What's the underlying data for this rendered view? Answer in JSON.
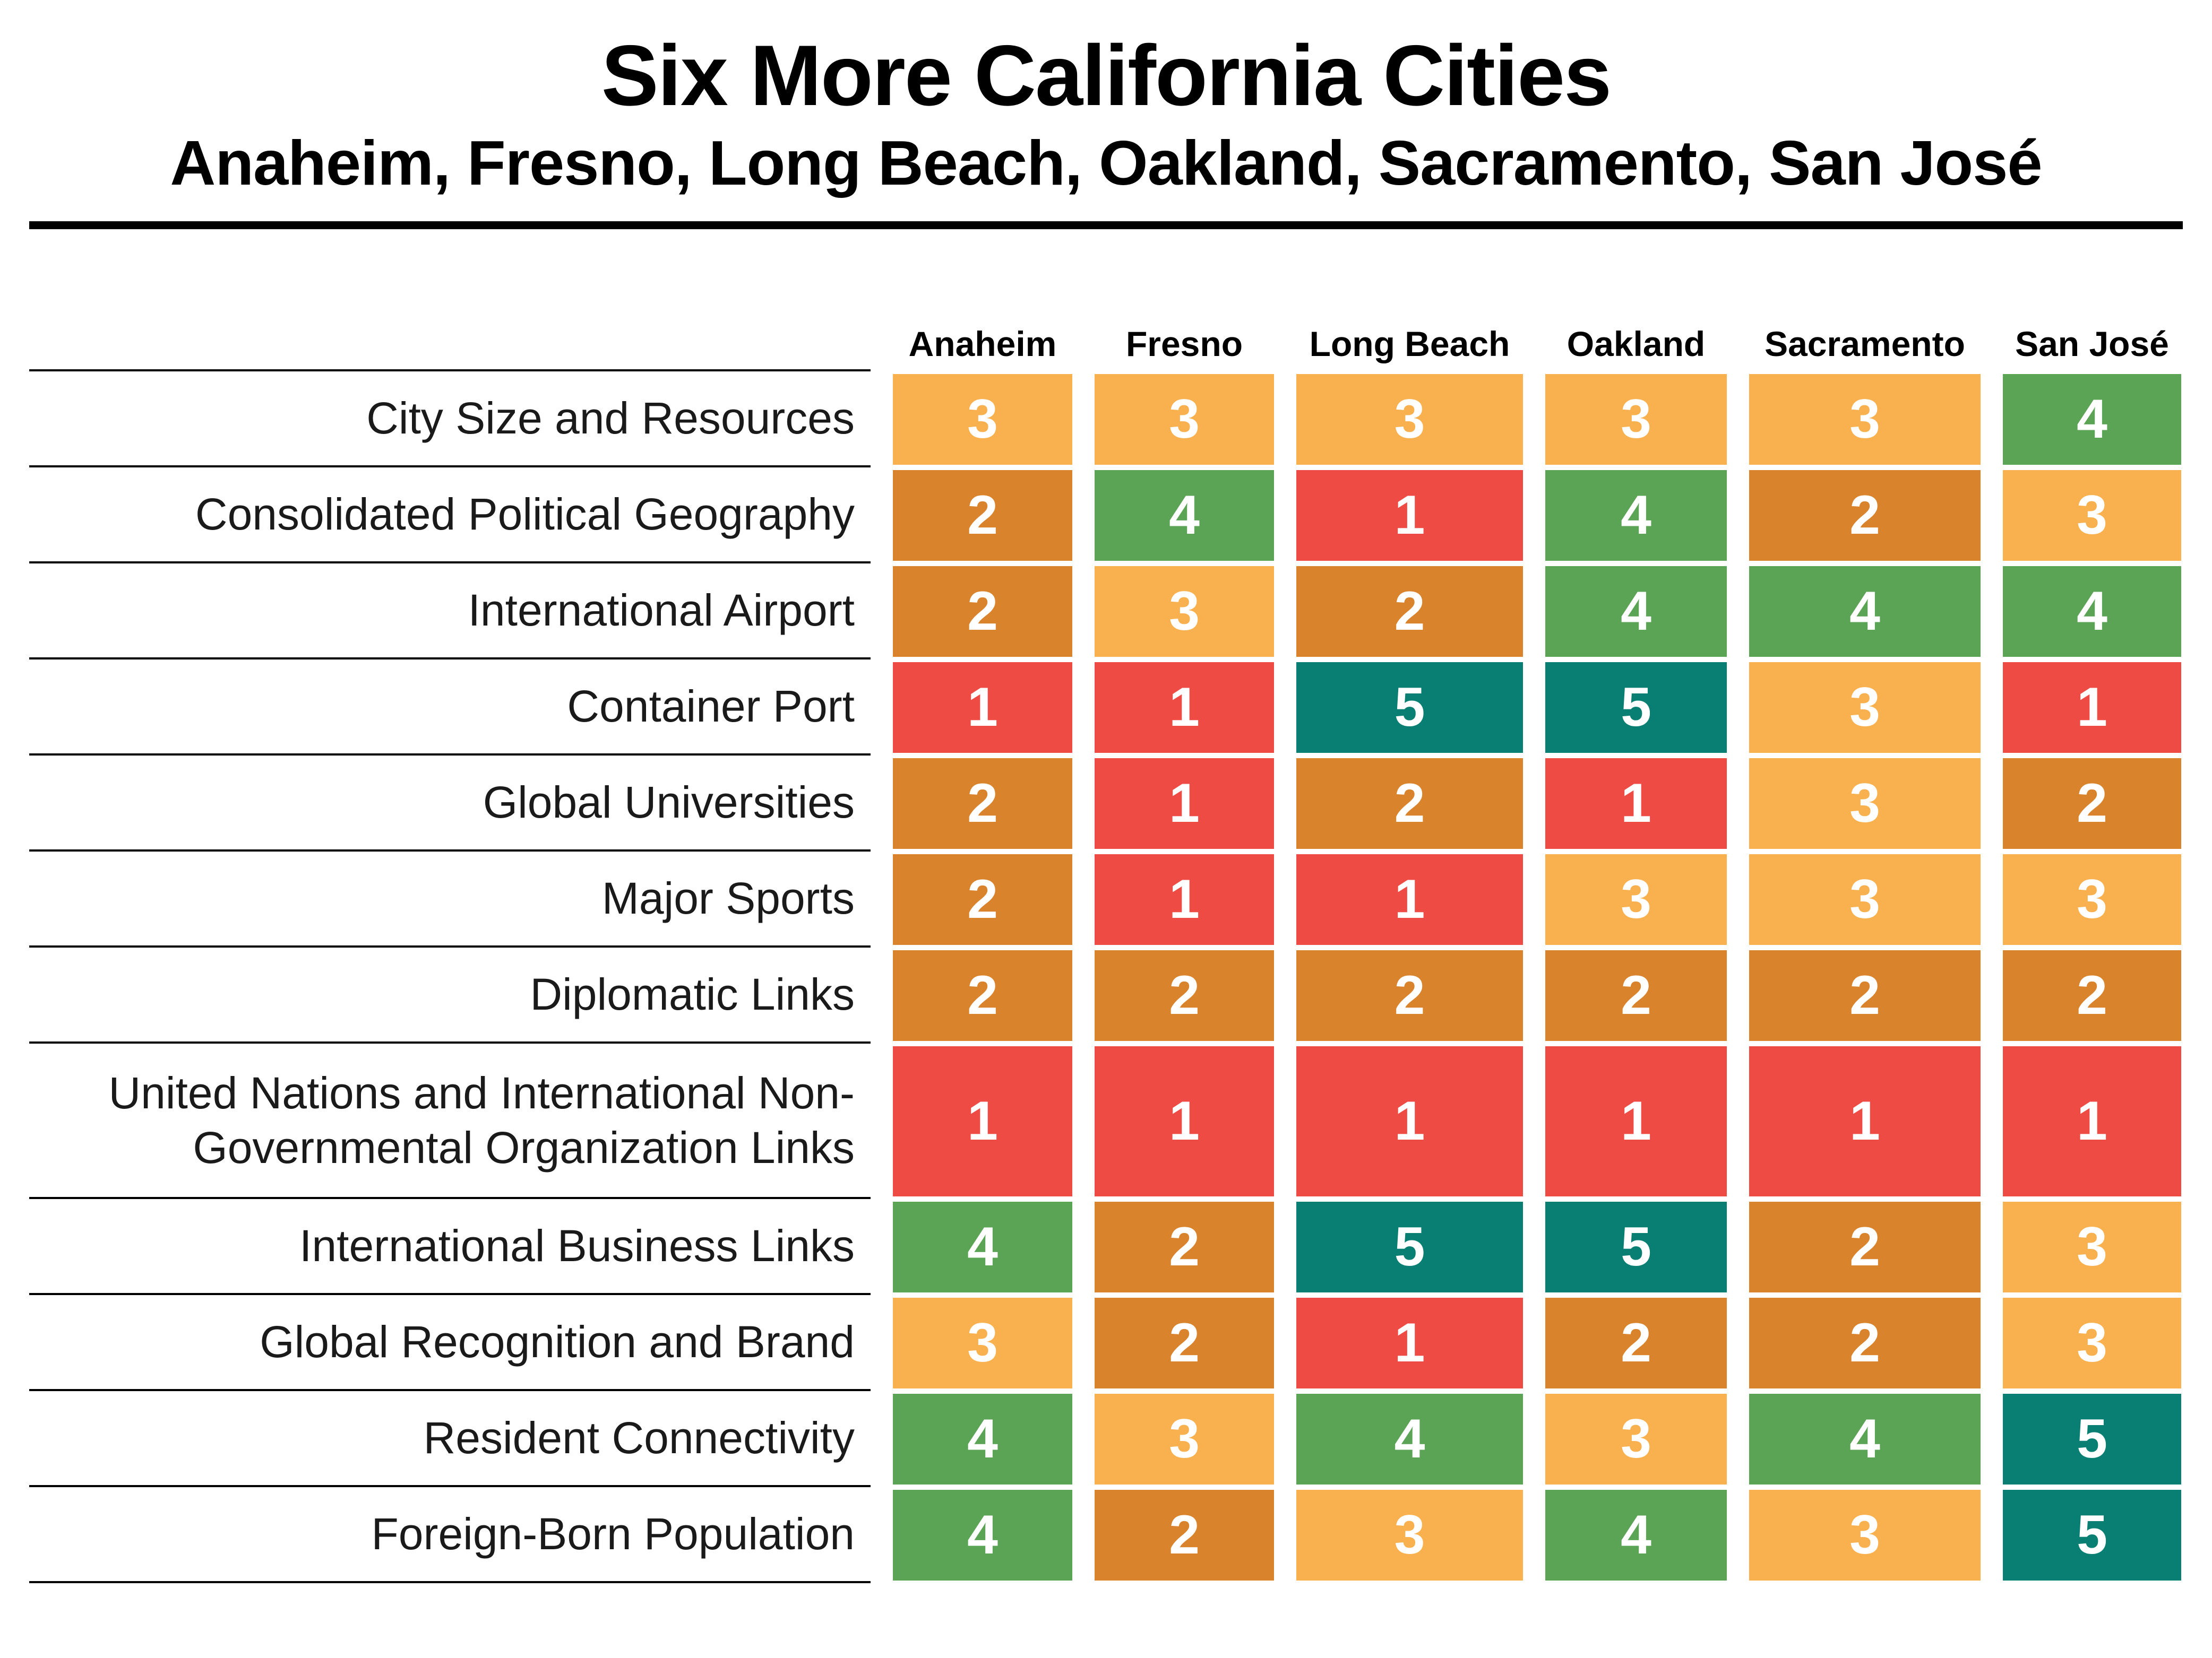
{
  "title": "Six More California Cities",
  "subtitle": "Anaheim, Fresno, Long Beach, Oakland, Sacramento, San José",
  "score_colors": {
    "1": "#EE4B45",
    "2": "#D9832C",
    "3": "#F9B04E",
    "4": "#5BA455",
    "5": "#087F72"
  },
  "cell_text_color": "#FFFFFF",
  "chart_data": {
    "type": "heatmap",
    "columns": [
      "Anaheim",
      "Fresno",
      "Long Beach",
      "Oakland",
      "Sacramento",
      "San José"
    ],
    "rows": [
      {
        "label": "City Size and Resources",
        "values": [
          3,
          3,
          3,
          3,
          3,
          4
        ]
      },
      {
        "label": "Consolidated Political Geography",
        "values": [
          2,
          4,
          1,
          4,
          2,
          3
        ]
      },
      {
        "label": "International Airport",
        "values": [
          2,
          3,
          2,
          4,
          4,
          4
        ]
      },
      {
        "label": "Container Port",
        "values": [
          1,
          1,
          5,
          5,
          3,
          1
        ]
      },
      {
        "label": "Global Universities",
        "values": [
          2,
          1,
          2,
          1,
          3,
          2
        ]
      },
      {
        "label": "Major Sports",
        "values": [
          2,
          1,
          1,
          3,
          3,
          3
        ]
      },
      {
        "label": "Diplomatic Links",
        "values": [
          2,
          2,
          2,
          2,
          2,
          2
        ]
      },
      {
        "label": "United Nations and International Non-Governmental Organization Links",
        "values": [
          1,
          1,
          1,
          1,
          1,
          1
        ]
      },
      {
        "label": "International Business Links",
        "values": [
          4,
          2,
          5,
          5,
          2,
          3
        ]
      },
      {
        "label": "Global Recognition and Brand",
        "values": [
          3,
          2,
          1,
          2,
          2,
          3
        ]
      },
      {
        "label": "Resident Connectivity",
        "values": [
          4,
          3,
          4,
          3,
          4,
          5
        ]
      },
      {
        "label": "Foreign-Born Population",
        "values": [
          4,
          2,
          3,
          4,
          3,
          5
        ]
      }
    ],
    "scale": {
      "min": 1,
      "max": 5
    },
    "legend": "none",
    "grid": "row-separator-lines-on-label-column-only"
  }
}
